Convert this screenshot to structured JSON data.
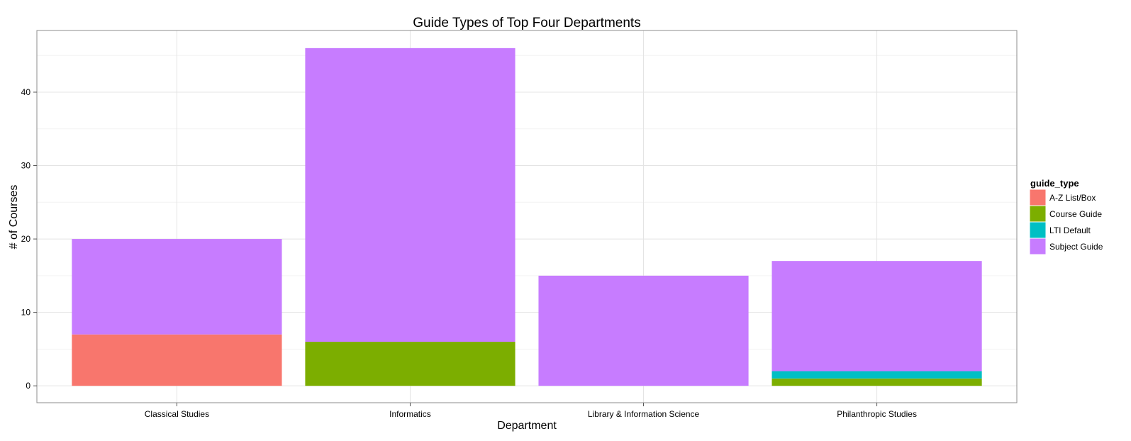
{
  "chart_data": {
    "type": "bar",
    "stacked": true,
    "title": "Guide Types of Top Four Departments",
    "xlabel": "Department",
    "ylabel": "# of Courses",
    "ylim": [
      -2.3,
      48.4
    ],
    "yticks": [
      0,
      10,
      20,
      30,
      40
    ],
    "grid": true,
    "legend_position": "right",
    "legend_title": "guide_type",
    "categories": [
      "Classical Studies",
      "Informatics",
      "Library & Information Science",
      "Philanthropic Studies"
    ],
    "series": [
      {
        "name": "A-Z List/Box",
        "color": "#F8766D",
        "values": [
          7,
          0,
          0,
          0
        ]
      },
      {
        "name": "Course Guide",
        "color": "#7CAE00",
        "values": [
          0,
          6,
          0,
          1
        ]
      },
      {
        "name": "LTI Default",
        "color": "#00BFC4",
        "values": [
          0,
          0,
          0,
          1
        ]
      },
      {
        "name": "Subject Guide",
        "color": "#C77CFF",
        "values": [
          13,
          40,
          15,
          15
        ]
      }
    ]
  }
}
